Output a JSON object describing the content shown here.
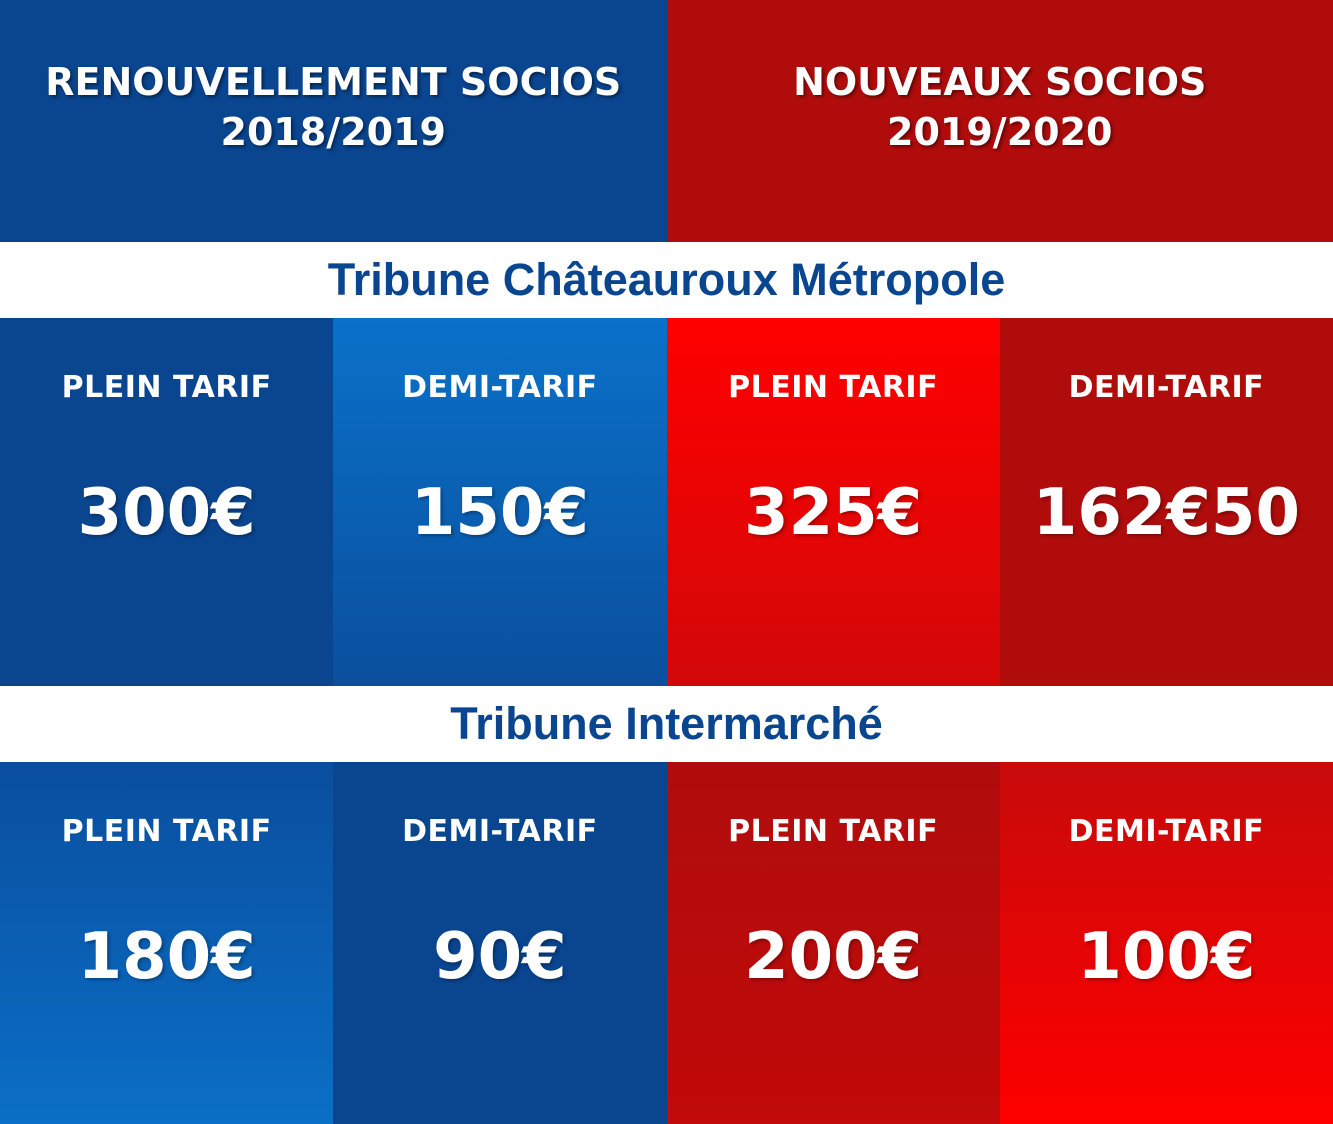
{
  "header": {
    "left": {
      "line1": "RENOUVELLEMENT SOCIOS",
      "line2": "2018/2019"
    },
    "right": {
      "line1": "NOUVEAUX SOCIOS",
      "line2": "2019/2020"
    }
  },
  "sections": [
    {
      "title": "Tribune Châteauroux Métropole",
      "cells": [
        {
          "label": "PLEIN TARIF",
          "price": "300€"
        },
        {
          "label": "DEMI-TARIF",
          "price": "150€"
        },
        {
          "label": "PLEIN TARIF",
          "price": "325€"
        },
        {
          "label": "DEMI-TARIF",
          "price": "162€50"
        }
      ]
    },
    {
      "title": "Tribune Intermarché",
      "cells": [
        {
          "label": "PLEIN TARIF",
          "price": "180€"
        },
        {
          "label": "DEMI-TARIF",
          "price": "90€"
        },
        {
          "label": "PLEIN TARIF",
          "price": "200€"
        },
        {
          "label": "DEMI-TARIF",
          "price": "100€"
        }
      ]
    }
  ],
  "colors": {
    "blue": "#0a4590",
    "red": "#b00c0c",
    "bright_red": "#ff0000",
    "light_blue": "#0a71c8"
  }
}
